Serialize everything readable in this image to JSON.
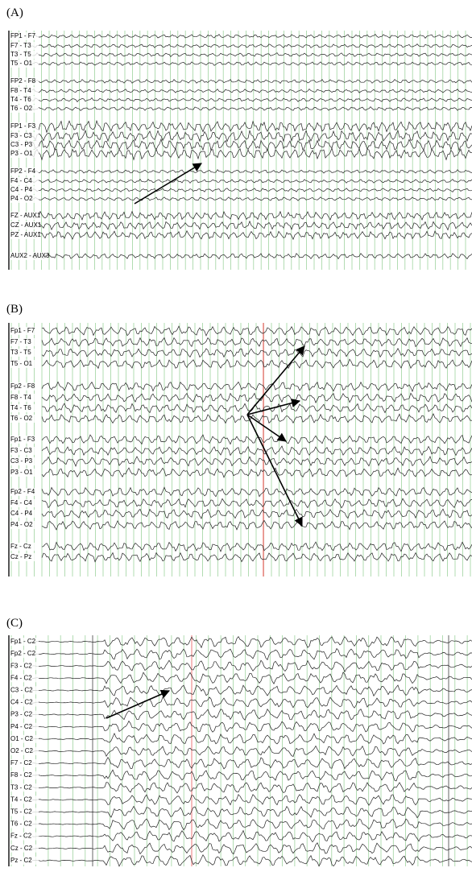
{
  "panels": [
    {
      "label": "(A)",
      "channels": [
        "FP1 - F7",
        "F7 - T3",
        "T3 - T5",
        "T5 - O1",
        "FP2 - F8",
        "F8 - T4",
        "T4 - T6",
        "T6 - O2",
        "FP1 - F3",
        "F3 - C3",
        "C3 - P3",
        "P3 - O1",
        "FP2 - F4",
        "F4 - C4",
        "C4 - P4",
        "P4 - O2",
        "FZ - AUX1",
        "CZ - AUX1",
        "PZ - AUX1",
        "AUX2 - AUX3"
      ]
    },
    {
      "label": "(B)",
      "channels": [
        "Fp1 - F7",
        "F7 - T3",
        "T3 - T5",
        "T5 - O1",
        "Fp2 - F8",
        "F8 - T4",
        "T4 - T6",
        "T6 - O2",
        "Fp1 - F3",
        "F3 - C3",
        "C3 - P3",
        "P3 - O1",
        "Fp2 - F4",
        "F4 - C4",
        "C4 - P4",
        "P4 - O2",
        "Fz - Cz",
        "Cz - Pz"
      ]
    },
    {
      "label": "(C)",
      "channels": [
        "Fp1 - C2",
        "Fp2 - C2",
        "F3 - C2",
        "F4 - C2",
        "C3 - C2",
        "C4 - C2",
        "P3 - C2",
        "P4 - C2",
        "O1 - C2",
        "O2 - C2",
        "F7 - C2",
        "F8 - C2",
        "T3 - C2",
        "T4 - C2",
        "T5 - C2",
        "T6 - C2",
        "Fz - C2",
        "Cz - C2",
        "Pz - C2"
      ]
    }
  ]
}
